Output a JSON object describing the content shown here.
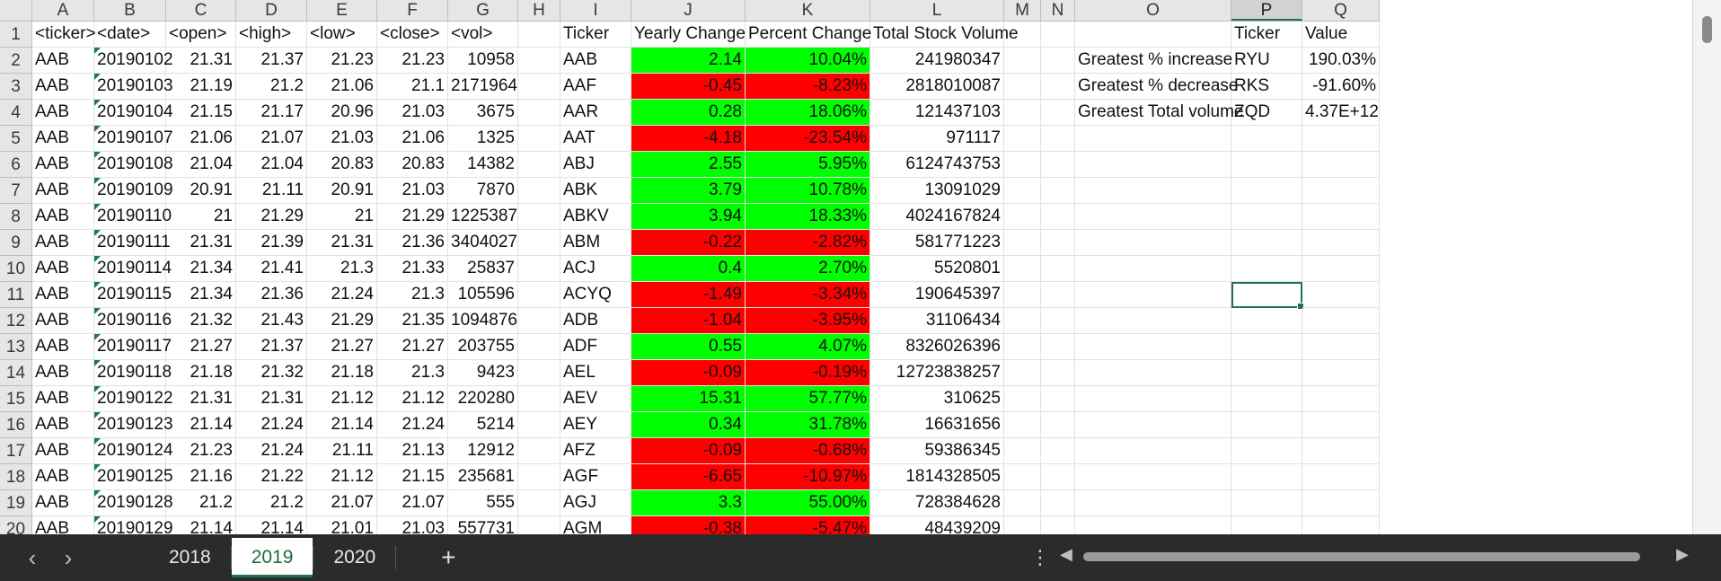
{
  "columns": [
    "A",
    "B",
    "C",
    "D",
    "E",
    "F",
    "G",
    "H",
    "I",
    "J",
    "K",
    "L",
    "M",
    "N",
    "O",
    "P",
    "Q"
  ],
  "selected_column": "P",
  "headers_row1": {
    "A": "<ticker>",
    "B": "<date>",
    "C": "<open>",
    "D": "<high>",
    "E": "<low>",
    "F": "<close>",
    "G": "<vol>",
    "I": "Ticker",
    "J": "Yearly Change",
    "K": "Percent Change",
    "L": "Total Stock Volume",
    "P": "Ticker",
    "Q": "Value"
  },
  "raw_rows": [
    {
      "ticker": "AAB",
      "date": "20190102",
      "open": "21.31",
      "high": "21.37",
      "low": "21.23",
      "close": "21.23",
      "vol": "10958"
    },
    {
      "ticker": "AAB",
      "date": "20190103",
      "open": "21.19",
      "high": "21.2",
      "low": "21.06",
      "close": "21.1",
      "vol": "2171964"
    },
    {
      "ticker": "AAB",
      "date": "20190104",
      "open": "21.15",
      "high": "21.17",
      "low": "20.96",
      "close": "21.03",
      "vol": "3675"
    },
    {
      "ticker": "AAB",
      "date": "20190107",
      "open": "21.06",
      "high": "21.07",
      "low": "21.03",
      "close": "21.06",
      "vol": "1325"
    },
    {
      "ticker": "AAB",
      "date": "20190108",
      "open": "21.04",
      "high": "21.04",
      "low": "20.83",
      "close": "20.83",
      "vol": "14382"
    },
    {
      "ticker": "AAB",
      "date": "20190109",
      "open": "20.91",
      "high": "21.11",
      "low": "20.91",
      "close": "21.03",
      "vol": "7870"
    },
    {
      "ticker": "AAB",
      "date": "20190110",
      "open": "21",
      "high": "21.29",
      "low": "21",
      "close": "21.29",
      "vol": "1225387"
    },
    {
      "ticker": "AAB",
      "date": "20190111",
      "open": "21.31",
      "high": "21.39",
      "low": "21.31",
      "close": "21.36",
      "vol": "3404027"
    },
    {
      "ticker": "AAB",
      "date": "20190114",
      "open": "21.34",
      "high": "21.41",
      "low": "21.3",
      "close": "21.33",
      "vol": "25837"
    },
    {
      "ticker": "AAB",
      "date": "20190115",
      "open": "21.34",
      "high": "21.36",
      "low": "21.24",
      "close": "21.3",
      "vol": "105596"
    },
    {
      "ticker": "AAB",
      "date": "20190116",
      "open": "21.32",
      "high": "21.43",
      "low": "21.29",
      "close": "21.35",
      "vol": "1094876"
    },
    {
      "ticker": "AAB",
      "date": "20190117",
      "open": "21.27",
      "high": "21.37",
      "low": "21.27",
      "close": "21.27",
      "vol": "203755"
    },
    {
      "ticker": "AAB",
      "date": "20190118",
      "open": "21.18",
      "high": "21.32",
      "low": "21.18",
      "close": "21.3",
      "vol": "9423"
    },
    {
      "ticker": "AAB",
      "date": "20190122",
      "open": "21.31",
      "high": "21.31",
      "low": "21.12",
      "close": "21.12",
      "vol": "220280"
    },
    {
      "ticker": "AAB",
      "date": "20190123",
      "open": "21.14",
      "high": "21.24",
      "low": "21.14",
      "close": "21.24",
      "vol": "5214"
    },
    {
      "ticker": "AAB",
      "date": "20190124",
      "open": "21.23",
      "high": "21.24",
      "low": "21.11",
      "close": "21.13",
      "vol": "12912"
    },
    {
      "ticker": "AAB",
      "date": "20190125",
      "open": "21.16",
      "high": "21.22",
      "low": "21.12",
      "close": "21.15",
      "vol": "235681"
    },
    {
      "ticker": "AAB",
      "date": "20190128",
      "open": "21.2",
      "high": "21.2",
      "low": "21.07",
      "close": "21.07",
      "vol": "555"
    },
    {
      "ticker": "AAB",
      "date": "20190129",
      "open": "21.14",
      "high": "21.14",
      "low": "21.01",
      "close": "21.03",
      "vol": "557731"
    }
  ],
  "summary_rows": [
    {
      "ticker": "AAB",
      "yearly_change": "2.14",
      "percent_change": "10.04%",
      "total_volume": "241980347",
      "color": "#00ff00"
    },
    {
      "ticker": "AAF",
      "yearly_change": "-0.45",
      "percent_change": "-8.23%",
      "total_volume": "2818010087",
      "color": "#ff0000"
    },
    {
      "ticker": "AAR",
      "yearly_change": "0.28",
      "percent_change": "18.06%",
      "total_volume": "121437103",
      "color": "#00ff00"
    },
    {
      "ticker": "AAT",
      "yearly_change": "-4.18",
      "percent_change": "-23.54%",
      "total_volume": "971117",
      "color": "#ff0000"
    },
    {
      "ticker": "ABJ",
      "yearly_change": "2.55",
      "percent_change": "5.95%",
      "total_volume": "6124743753",
      "color": "#00ff00"
    },
    {
      "ticker": "ABK",
      "yearly_change": "3.79",
      "percent_change": "10.78%",
      "total_volume": "13091029",
      "color": "#00ff00"
    },
    {
      "ticker": "ABKV",
      "yearly_change": "3.94",
      "percent_change": "18.33%",
      "total_volume": "4024167824",
      "color": "#00ff00"
    },
    {
      "ticker": "ABM",
      "yearly_change": "-0.22",
      "percent_change": "-2.82%",
      "total_volume": "581771223",
      "color": "#ff0000"
    },
    {
      "ticker": "ACJ",
      "yearly_change": "0.4",
      "percent_change": "2.70%",
      "total_volume": "5520801",
      "color": "#00ff00"
    },
    {
      "ticker": "ACYQ",
      "yearly_change": "-1.49",
      "percent_change": "-3.34%",
      "total_volume": "190645397",
      "color": "#ff0000"
    },
    {
      "ticker": "ADB",
      "yearly_change": "-1.04",
      "percent_change": "-3.95%",
      "total_volume": "31106434",
      "color": "#ff0000"
    },
    {
      "ticker": "ADF",
      "yearly_change": "0.55",
      "percent_change": "4.07%",
      "total_volume": "8326026396",
      "color": "#00ff00"
    },
    {
      "ticker": "AEL",
      "yearly_change": "-0.09",
      "percent_change": "-0.19%",
      "total_volume": "12723838257",
      "color": "#ff0000"
    },
    {
      "ticker": "AEV",
      "yearly_change": "15.31",
      "percent_change": "57.77%",
      "total_volume": "310625",
      "color": "#00ff00"
    },
    {
      "ticker": "AEY",
      "yearly_change": "0.34",
      "percent_change": "31.78%",
      "total_volume": "16631656",
      "color": "#00ff00"
    },
    {
      "ticker": "AFZ",
      "yearly_change": "-0.09",
      "percent_change": "-0.68%",
      "total_volume": "59386345",
      "color": "#ff0000"
    },
    {
      "ticker": "AGF",
      "yearly_change": "-6.65",
      "percent_change": "-10.97%",
      "total_volume": "1814328505",
      "color": "#ff0000"
    },
    {
      "ticker": "AGJ",
      "yearly_change": "3.3",
      "percent_change": "55.00%",
      "total_volume": "728384628",
      "color": "#00ff00"
    },
    {
      "ticker": "AGM",
      "yearly_change": "-0.38",
      "percent_change": "-5.47%",
      "total_volume": "48439209",
      "color": "#ff0000"
    }
  ],
  "greatest": [
    {
      "label": "Greatest % increase",
      "ticker": "RYU",
      "value": "190.03%"
    },
    {
      "label": "Greatest % decrease",
      "ticker": "RKS",
      "value": "-91.60%"
    },
    {
      "label": "Greatest Total volume",
      "ticker": "ZQD",
      "value": "4.37E+12"
    }
  ],
  "selected_cell": "P11",
  "sheet_tabs": [
    {
      "label": "2018",
      "active": false
    },
    {
      "label": "2019",
      "active": true
    },
    {
      "label": "2020",
      "active": false
    }
  ],
  "icons": {
    "prev": "chevron-left-icon",
    "next": "chevron-right-icon",
    "add": "plus-icon",
    "more": "vertical-ellipsis-icon",
    "hleft": "triangle-left-icon",
    "hright": "triangle-right-icon"
  },
  "glyphs": {
    "prev": "‹",
    "next": "›",
    "add": "+",
    "more": "⋮",
    "hleft": "◀",
    "hright": "▶"
  }
}
